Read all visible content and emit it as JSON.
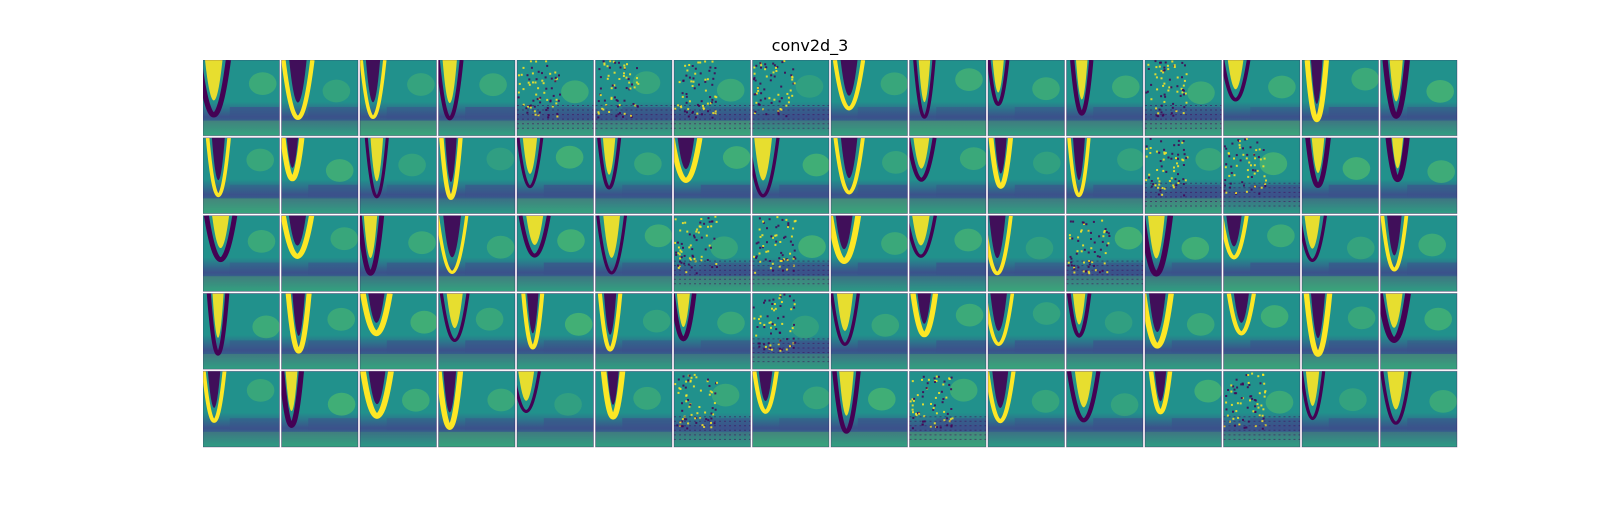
{
  "title": "conv2d_3",
  "grid": {
    "rows": 5,
    "cols": 16,
    "colormap": "viridis",
    "colors": {
      "dark": "#440154",
      "deep_blue": "#3b528b",
      "teal": "#21918c",
      "green": "#5ec962",
      "yellow": "#fde725"
    }
  }
}
